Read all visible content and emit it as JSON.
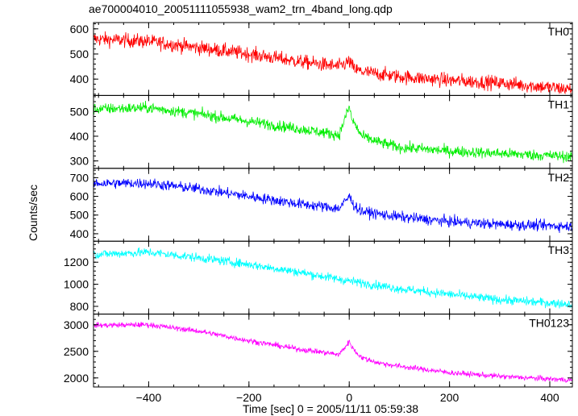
{
  "chart_data": {
    "type": "line",
    "title": "ae700004010_20051111055938_wam2_trn_4band_long.qdp",
    "xlabel": "Time [sec] 0 = 2005/11/11 05:59:38",
    "ylabel": "Counts/sec",
    "xlim": [
      -510,
      445
    ],
    "xticks": [
      -400,
      -200,
      0,
      200,
      400
    ],
    "grid": false,
    "panels": [
      {
        "name": "TH0",
        "color": "#ff0000",
        "ylim": [
          335,
          625
        ],
        "yticks": [
          400,
          500,
          600
        ],
        "noise": 28,
        "x": [
          -510,
          -400,
          -300,
          -200,
          -100,
          -20,
          0,
          10,
          25,
          60,
          100,
          200,
          300,
          440
        ],
        "y": [
          560,
          550,
          525,
          500,
          470,
          450,
          470,
          440,
          430,
          420,
          410,
          395,
          385,
          360
        ]
      },
      {
        "name": "TH1",
        "color": "#00ee00",
        "ylim": [
          270,
          565
        ],
        "yticks": [
          300,
          400,
          500
        ],
        "noise": 22,
        "x": [
          -510,
          -400,
          -300,
          -200,
          -100,
          -20,
          0,
          5,
          25,
          60,
          100,
          200,
          300,
          440
        ],
        "y": [
          510,
          515,
          490,
          460,
          430,
          405,
          520,
          470,
          400,
          375,
          355,
          340,
          330,
          318
        ]
      },
      {
        "name": "TH2",
        "color": "#0000ff",
        "ylim": [
          360,
          750
        ],
        "yticks": [
          400,
          500,
          600,
          700
        ],
        "noise": 28,
        "x": [
          -510,
          -400,
          -300,
          -200,
          -100,
          -20,
          0,
          10,
          25,
          60,
          100,
          200,
          300,
          440
        ],
        "y": [
          670,
          670,
          640,
          600,
          560,
          535,
          600,
          550,
          520,
          505,
          490,
          465,
          450,
          440
        ]
      },
      {
        "name": "TH3",
        "color": "#00ffff",
        "ylim": [
          730,
          1390
        ],
        "yticks": [
          800,
          1000,
          1200
        ],
        "noise": 40,
        "x": [
          -510,
          -400,
          -300,
          -200,
          -100,
          0,
          100,
          200,
          300,
          440
        ],
        "y": [
          1270,
          1290,
          1240,
          1180,
          1110,
          1030,
          960,
          910,
          860,
          820
        ]
      },
      {
        "name": "TH0123",
        "color": "#ff00ff",
        "ylim": [
          1830,
          3200
        ],
        "yticks": [
          2000,
          2500,
          3000
        ],
        "noise": 50,
        "x": [
          -510,
          -400,
          -300,
          -200,
          -100,
          -20,
          0,
          10,
          25,
          60,
          100,
          200,
          300,
          440
        ],
        "y": [
          2990,
          3000,
          2880,
          2700,
          2540,
          2440,
          2680,
          2520,
          2380,
          2280,
          2220,
          2100,
          2030,
          1960
        ]
      }
    ]
  }
}
